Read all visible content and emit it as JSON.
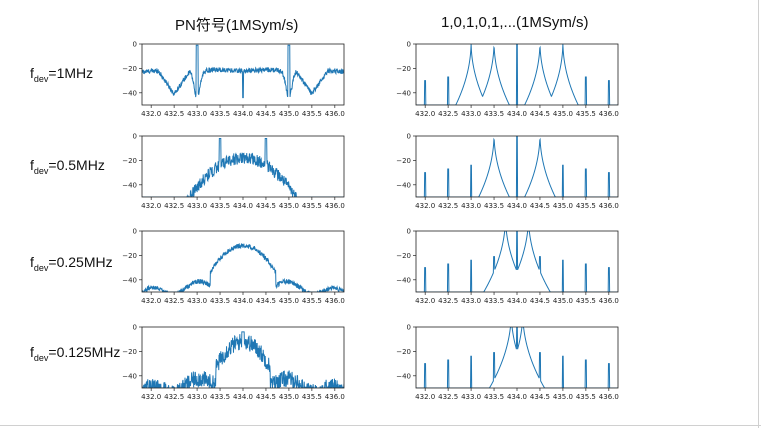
{
  "titles": {
    "left": "PN符号(1MSym/s)",
    "right": "1,0,1,0,1,...(1MSym/s)"
  },
  "rows": [
    {
      "base": "f",
      "sub": "dev",
      "rest": "=1MHz"
    },
    {
      "base": "f",
      "sub": "dev",
      "rest": "=0.5MHz"
    },
    {
      "base": "f",
      "sub": "dev",
      "rest": "=0.25MHz"
    },
    {
      "base": "f",
      "sub": "dev",
      "rest": "=0.125MHz"
    }
  ],
  "style": {
    "line_color": "#1f77b4"
  },
  "chart_data": [
    {
      "type": "line",
      "panel": "pn-1MHz",
      "xlim": [
        431.8,
        436.2
      ],
      "ylim": [
        -50,
        0
      ],
      "xticks": [
        "432.0",
        "432.5",
        "433.0",
        "433.5",
        "434.0",
        "434.5",
        "435.0",
        "435.5",
        "436.0"
      ],
      "yticks": [
        "0",
        "−20",
        "−40"
      ],
      "series": [
        {
          "spectrum": "pn",
          "center": 434.0,
          "fdev": 1.0
        }
      ]
    },
    {
      "type": "line",
      "panel": "alt-1MHz",
      "xlim": [
        431.8,
        436.2
      ],
      "ylim": [
        -50,
        0
      ],
      "xticks": [
        "432.0",
        "432.5",
        "433.0",
        "433.5",
        "434.0",
        "434.5",
        "435.0",
        "435.5",
        "436.0"
      ],
      "yticks": [
        "0",
        "−20",
        "−40"
      ],
      "series": [
        {
          "spectrum": "alternating",
          "center": 434.0,
          "fdev": 1.0
        }
      ]
    },
    {
      "type": "line",
      "panel": "pn-0.5MHz",
      "xlim": [
        431.8,
        436.2
      ],
      "ylim": [
        -50,
        0
      ],
      "xticks": [
        "432.0",
        "432.5",
        "433.0",
        "433.5",
        "434.0",
        "434.5",
        "435.0",
        "435.5",
        "436.0"
      ],
      "yticks": [
        "0",
        "−20",
        "−40"
      ],
      "series": [
        {
          "spectrum": "pn",
          "center": 434.0,
          "fdev": 0.5
        }
      ]
    },
    {
      "type": "line",
      "panel": "alt-0.5MHz",
      "xlim": [
        431.8,
        436.2
      ],
      "ylim": [
        -50,
        0
      ],
      "xticks": [
        "432.0",
        "432.5",
        "433.0",
        "433.5",
        "434.0",
        "434.5",
        "435.0",
        "435.5",
        "436.0"
      ],
      "yticks": [
        "0",
        "−20",
        "−40"
      ],
      "series": [
        {
          "spectrum": "alternating",
          "center": 434.0,
          "fdev": 0.5
        }
      ]
    },
    {
      "type": "line",
      "panel": "pn-0.25MHz",
      "xlim": [
        431.8,
        436.2
      ],
      "ylim": [
        -50,
        0
      ],
      "xticks": [
        "432.0",
        "432.5",
        "433.0",
        "433.5",
        "434.0",
        "434.5",
        "435.0",
        "435.5",
        "436.0"
      ],
      "yticks": [
        "0",
        "−20",
        "−40"
      ],
      "series": [
        {
          "spectrum": "pn",
          "center": 434.0,
          "fdev": 0.25
        }
      ]
    },
    {
      "type": "line",
      "panel": "alt-0.25MHz",
      "xlim": [
        431.8,
        436.2
      ],
      "ylim": [
        -50,
        0
      ],
      "xticks": [
        "432.0",
        "432.5",
        "433.0",
        "433.5",
        "434.0",
        "434.5",
        "435.0",
        "435.5",
        "436.0"
      ],
      "yticks": [
        "0",
        "−20",
        "−40"
      ],
      "series": [
        {
          "spectrum": "alternating",
          "center": 434.0,
          "fdev": 0.25
        }
      ]
    },
    {
      "type": "line",
      "panel": "pn-0.125MHz",
      "xlim": [
        431.8,
        436.2
      ],
      "ylim": [
        -50,
        0
      ],
      "xticks": [
        "432.0",
        "432.5",
        "433.0",
        "433.5",
        "434.0",
        "434.5",
        "435.0",
        "435.5",
        "436.0"
      ],
      "yticks": [
        "0",
        "−20",
        "−40"
      ],
      "series": [
        {
          "spectrum": "pn",
          "center": 434.0,
          "fdev": 0.125
        }
      ]
    },
    {
      "type": "line",
      "panel": "alt-0.125MHz",
      "xlim": [
        431.8,
        436.2
      ],
      "ylim": [
        -50,
        0
      ],
      "xticks": [
        "432.0",
        "432.5",
        "433.0",
        "433.5",
        "434.0",
        "434.5",
        "435.0",
        "435.5",
        "436.0"
      ],
      "yticks": [
        "0",
        "−20",
        "−40"
      ],
      "series": [
        {
          "spectrum": "alternating",
          "center": 434.0,
          "fdev": 0.125
        }
      ]
    }
  ]
}
